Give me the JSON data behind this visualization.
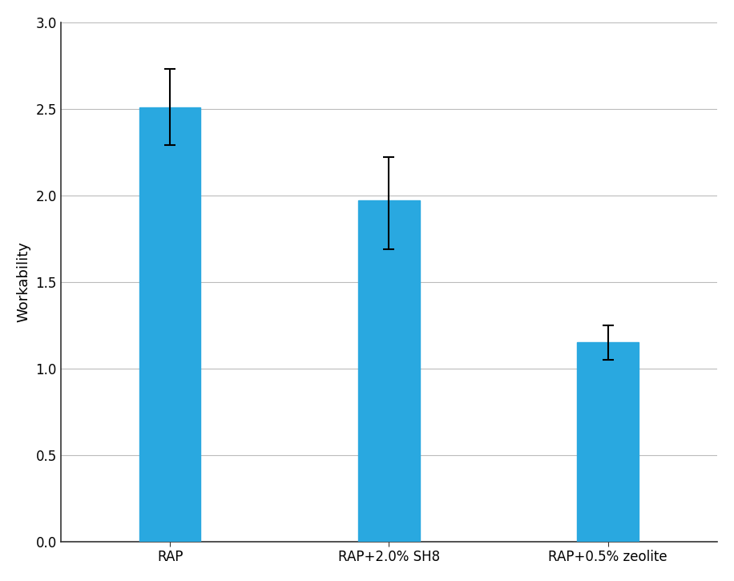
{
  "categories": [
    "RAP",
    "RAP+2.0% SH8",
    "RAP+0.5% zeolite"
  ],
  "values": [
    2.51,
    1.97,
    1.15
  ],
  "errors_up": [
    0.22,
    0.25,
    0.1
  ],
  "errors_down": [
    0.22,
    0.28,
    0.1
  ],
  "bar_color": "#29A8E0",
  "ylabel": "Workability",
  "ylim": [
    0.0,
    3.0
  ],
  "yticks": [
    0.0,
    0.5,
    1.0,
    1.5,
    2.0,
    2.5,
    3.0
  ],
  "bar_width": 0.28,
  "ecolor": "black",
  "capsize": 5,
  "grid_color": "#BBBBBB",
  "background_color": "#ffffff",
  "ylabel_fontsize": 13,
  "tick_fontsize": 12,
  "xtick_fontsize": 12,
  "spine_color": "#333333",
  "xlim": [
    -0.5,
    2.5
  ]
}
